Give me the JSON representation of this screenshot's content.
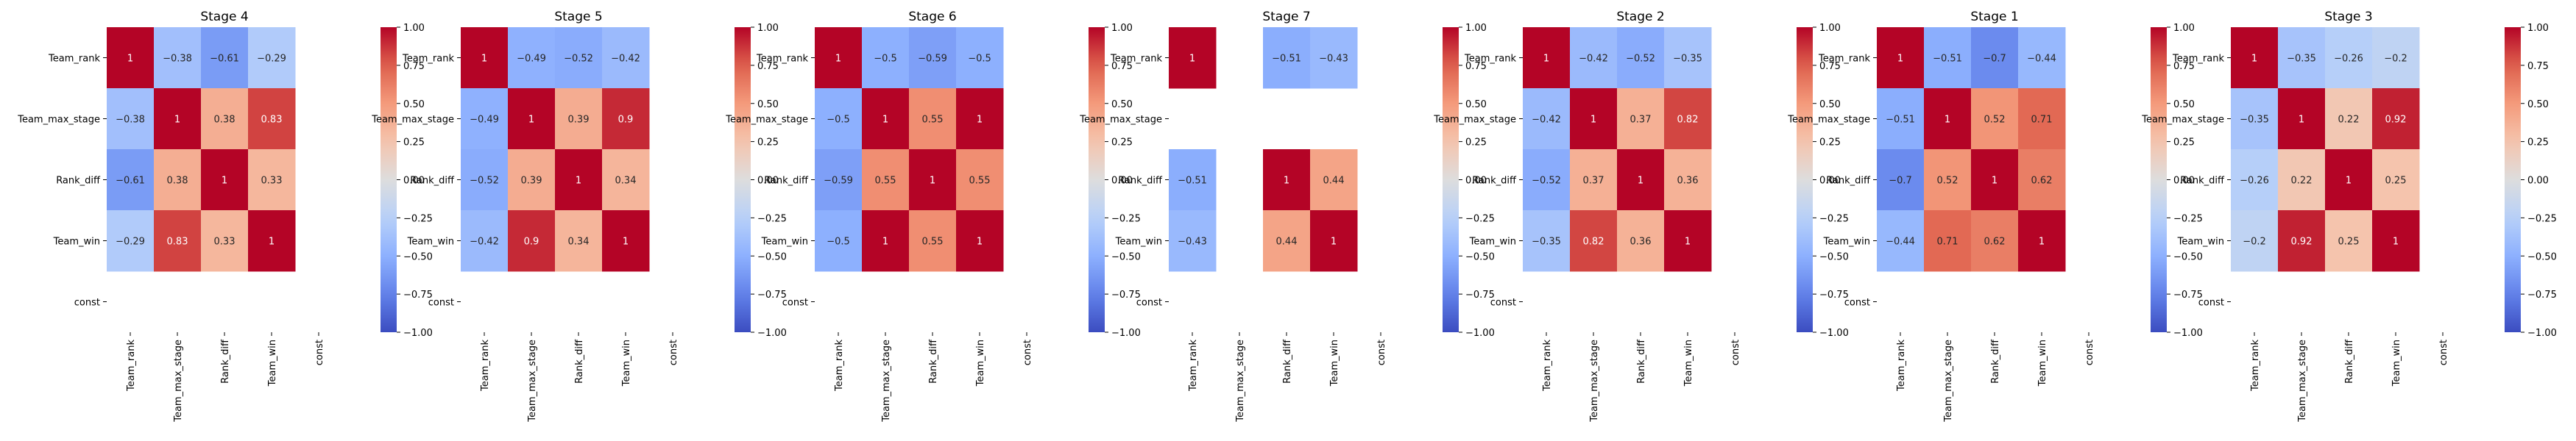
{
  "figure": {
    "colorscale": {
      "low": "#3b4cc0",
      "mid": "#dddddd",
      "high": "#b40426"
    },
    "colorbar_ticks": [
      "1.00",
      "0.75",
      "0.50",
      "0.25",
      "0.00",
      "−0.25",
      "−0.50",
      "−0.75",
      "−1.00"
    ],
    "colorbar_tick_values": [
      1,
      0.75,
      0.5,
      0.25,
      0,
      -0.25,
      -0.5,
      -0.75,
      -1
    ],
    "variables": [
      "Team_rank",
      "Team_max_stage",
      "Rank_diff",
      "Team_win",
      "const"
    ]
  },
  "chart_data": [
    {
      "type": "heatmap",
      "title": "Stage 4",
      "categories": [
        "Team_rank",
        "Team_max_stage",
        "Rank_diff",
        "Team_win",
        "const"
      ],
      "vmin": -1,
      "vmax": 1,
      "matrix": [
        [
          1,
          -0.38,
          -0.61,
          -0.29,
          null
        ],
        [
          -0.38,
          1,
          0.38,
          0.83,
          null
        ],
        [
          -0.61,
          0.38,
          1,
          0.33,
          null
        ],
        [
          -0.29,
          0.83,
          0.33,
          1,
          null
        ],
        [
          null,
          null,
          null,
          null,
          null
        ]
      ]
    },
    {
      "type": "heatmap",
      "title": "Stage 5",
      "categories": [
        "Team_rank",
        "Team_max_stage",
        "Rank_diff",
        "Team_win",
        "const"
      ],
      "vmin": -1,
      "vmax": 1,
      "matrix": [
        [
          1,
          -0.49,
          -0.52,
          -0.42,
          null
        ],
        [
          -0.49,
          1,
          0.39,
          0.9,
          null
        ],
        [
          -0.52,
          0.39,
          1,
          0.34,
          null
        ],
        [
          -0.42,
          0.9,
          0.34,
          1,
          null
        ],
        [
          null,
          null,
          null,
          null,
          null
        ]
      ]
    },
    {
      "type": "heatmap",
      "title": "Stage 6",
      "categories": [
        "Team_rank",
        "Team_max_stage",
        "Rank_diff",
        "Team_win",
        "const"
      ],
      "vmin": -1,
      "vmax": 1,
      "matrix": [
        [
          1,
          -0.5,
          -0.59,
          -0.5,
          null
        ],
        [
          -0.5,
          1,
          0.55,
          1,
          null
        ],
        [
          -0.59,
          0.55,
          1,
          0.55,
          null
        ],
        [
          -0.5,
          1,
          0.55,
          1,
          null
        ],
        [
          null,
          null,
          null,
          null,
          null
        ]
      ]
    },
    {
      "type": "heatmap",
      "title": "Stage 7",
      "categories": [
        "Team_rank",
        "Team_max_stage",
        "Rank_diff",
        "Team_win",
        "const"
      ],
      "vmin": -1,
      "vmax": 1,
      "matrix": [
        [
          1,
          null,
          -0.51,
          -0.43,
          null
        ],
        [
          null,
          null,
          null,
          null,
          null
        ],
        [
          -0.51,
          null,
          1,
          0.44,
          null
        ],
        [
          -0.43,
          null,
          0.44,
          1,
          null
        ],
        [
          null,
          null,
          null,
          null,
          null
        ]
      ]
    },
    {
      "type": "heatmap",
      "title": "Stage 2",
      "categories": [
        "Team_rank",
        "Team_max_stage",
        "Rank_diff",
        "Team_win",
        "const"
      ],
      "vmin": -1,
      "vmax": 1,
      "matrix": [
        [
          1,
          -0.42,
          -0.52,
          -0.35,
          null
        ],
        [
          -0.42,
          1,
          0.37,
          0.82,
          null
        ],
        [
          -0.52,
          0.37,
          1,
          0.36,
          null
        ],
        [
          -0.35,
          0.82,
          0.36,
          1,
          null
        ],
        [
          null,
          null,
          null,
          null,
          null
        ]
      ]
    },
    {
      "type": "heatmap",
      "title": "Stage 1",
      "categories": [
        "Team_rank",
        "Team_max_stage",
        "Rank_diff",
        "Team_win",
        "const"
      ],
      "vmin": -1,
      "vmax": 1,
      "matrix": [
        [
          1,
          -0.51,
          -0.7,
          -0.44,
          null
        ],
        [
          -0.51,
          1,
          0.52,
          0.71,
          null
        ],
        [
          -0.7,
          0.52,
          1,
          0.62,
          null
        ],
        [
          -0.44,
          0.71,
          0.62,
          1,
          null
        ],
        [
          null,
          null,
          null,
          null,
          null
        ]
      ]
    },
    {
      "type": "heatmap",
      "title": "Stage 3",
      "categories": [
        "Team_rank",
        "Team_max_stage",
        "Rank_diff",
        "Team_win",
        "const"
      ],
      "vmin": -1,
      "vmax": 1,
      "matrix": [
        [
          1,
          -0.35,
          -0.26,
          -0.2,
          null
        ],
        [
          -0.35,
          1,
          0.22,
          0.92,
          null
        ],
        [
          -0.26,
          0.22,
          1,
          0.25,
          null
        ],
        [
          -0.2,
          0.92,
          0.25,
          1,
          null
        ],
        [
          null,
          null,
          null,
          null,
          null
        ]
      ]
    }
  ]
}
